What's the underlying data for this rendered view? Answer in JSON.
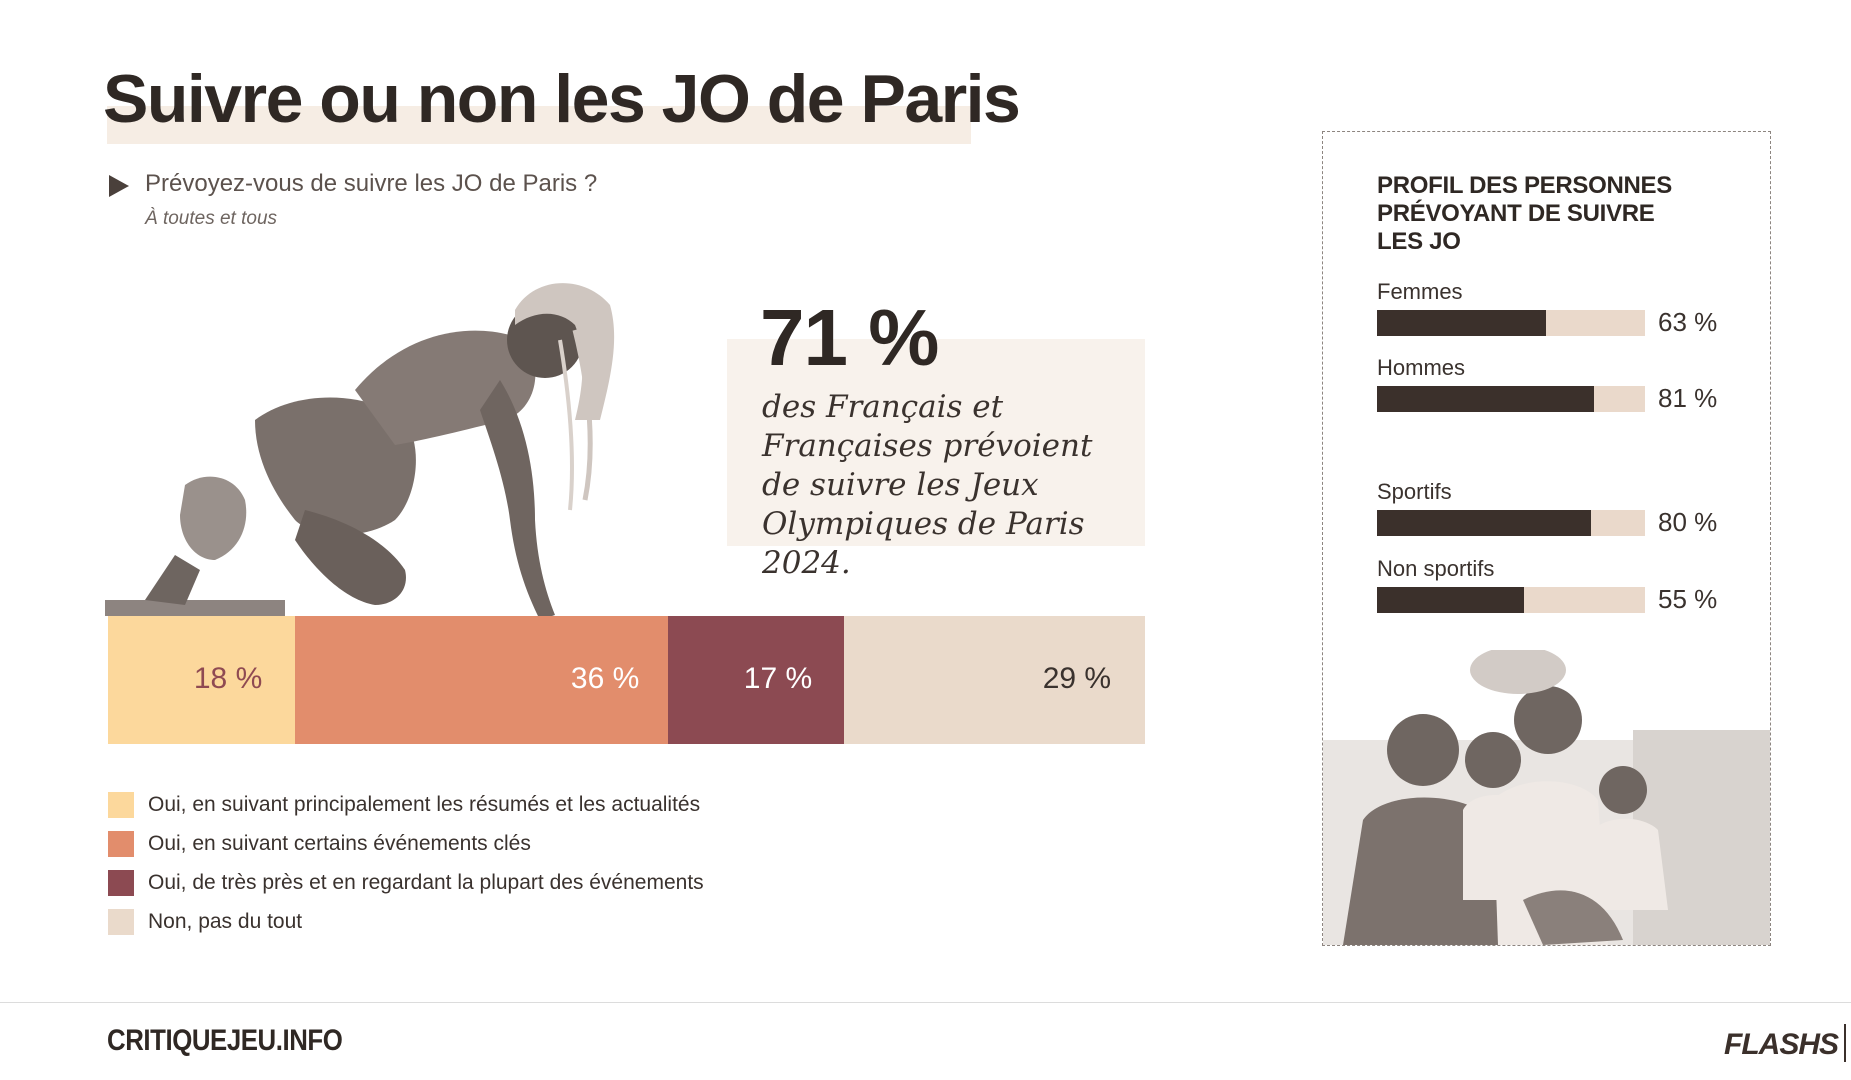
{
  "header": {
    "title": "Suivre ou non les JO de Paris",
    "question": "Prévoyez-vous de suivre les JO de Paris ?",
    "subquestion": "À toutes et tous"
  },
  "highlight": {
    "value": "71 %",
    "text": "des Français et Françaises prévoient de suivre les Jeux Olympiques de Paris 2024."
  },
  "chart_data": [
    {
      "type": "bar",
      "stacked": true,
      "orientation": "horizontal",
      "categories": [
        "Prévoyez-vous de suivre les JO de Paris ?"
      ],
      "series": [
        {
          "name": "Oui, en suivant principalement les résumés et les actualités",
          "values": [
            18
          ],
          "label": "18 %",
          "color": "#fcd89c",
          "text_color": "#8f4a52"
        },
        {
          "name": "Oui, en suivant certains événements clés",
          "values": [
            36
          ],
          "label": "36 %",
          "color": "#e28d6c",
          "text_color": "#ffffff"
        },
        {
          "name": "Oui, de très près et en regardant la plupart des événements",
          "values": [
            17
          ],
          "label": "17 %",
          "color": "#8c4a52",
          "text_color": "#ffffff"
        },
        {
          "name": "Non, pas du tout",
          "values": [
            29
          ],
          "label": "29 %",
          "color": "#eadacb",
          "text_color": "#3a322e"
        }
      ]
    },
    {
      "type": "bar",
      "orientation": "horizontal",
      "title": "PROFIL DES PERSONNES PRÉVOYANT DE SUIVRE LES JO",
      "categories": [
        "Femmes",
        "Hommes",
        "Sportifs",
        "Non sportifs"
      ],
      "values": [
        63,
        81,
        80,
        55
      ],
      "labels": [
        "63 %",
        "81 %",
        "80 %",
        "55 %"
      ],
      "xlim": [
        0,
        100
      ],
      "fill_color": "#3b302b",
      "track_color": "#ead9cb"
    }
  ],
  "footer": {
    "brand": "CRITIQUEJEU.INFO",
    "logo": "FLASHS"
  }
}
